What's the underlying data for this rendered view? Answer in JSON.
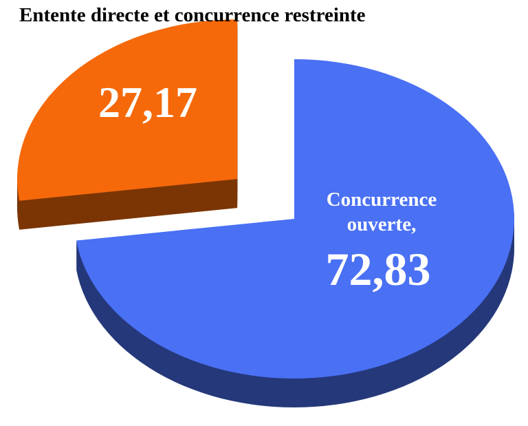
{
  "chart_data": {
    "type": "pie3d",
    "categories": [
      "Entente directe et concurrence restreinte",
      "Concurrence ouverte,"
    ],
    "values": [
      27.17,
      72.83
    ],
    "value_labels": [
      "27,17",
      "72,83"
    ],
    "colors": [
      "#f5690a",
      "#4a70f4"
    ]
  }
}
